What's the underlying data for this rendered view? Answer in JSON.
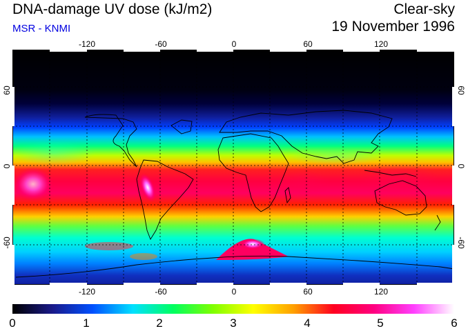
{
  "header": {
    "title": "DNA-damage UV dose (kJ/m2)",
    "source": "MSR - KNMI",
    "sky_condition": "Clear-sky",
    "date": "19 November 1996"
  },
  "map": {
    "lon_ticks_top": [
      "-120",
      "-60",
      "0",
      "60",
      "120"
    ],
    "lon_ticks_bottom": [
      "-120",
      "-60",
      "0",
      "60",
      "120"
    ],
    "lat_ticks_left": [
      "60",
      "0",
      "-60"
    ],
    "lat_ticks_right": [
      "60",
      "0",
      "-60"
    ]
  },
  "colorbar": {
    "labels": [
      "0",
      "1",
      "2",
      "3",
      "4",
      "5",
      "6"
    ],
    "min": 0,
    "max": 6,
    "colors": [
      "#000000",
      "#1a1a8a",
      "#0050ff",
      "#00e0ff",
      "#00ff60",
      "#80ff00",
      "#ffff00",
      "#ffa000",
      "#ff0020",
      "#ff0080",
      "#ff40ff",
      "#ffffff"
    ]
  },
  "colors": {
    "title": "#000000",
    "source": "#0000e0"
  }
}
